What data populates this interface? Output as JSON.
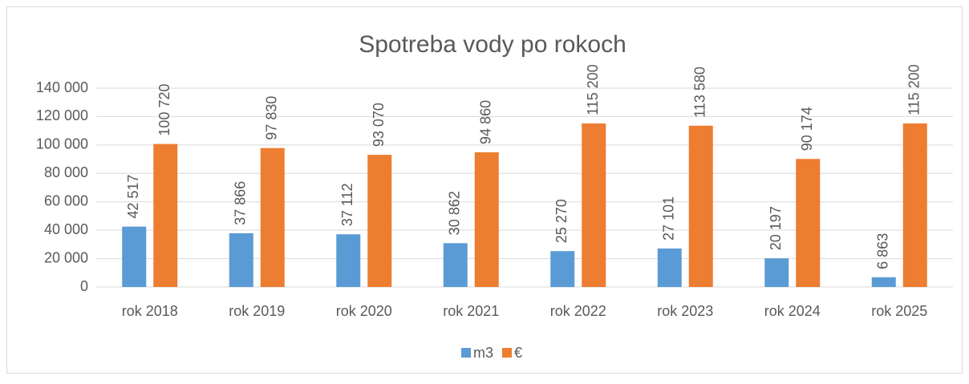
{
  "chart_data": {
    "type": "bar",
    "title": "Spotreba vody po rokoch",
    "categories": [
      "rok 2018",
      "rok 2019",
      "rok 2020",
      "rok 2021",
      "rok 2022",
      "rok 2023",
      "rok 2024",
      "rok 2025"
    ],
    "series": [
      {
        "name": "m3",
        "color": "#5b9bd5",
        "values": [
          42517,
          37866,
          37112,
          30862,
          25270,
          27101,
          20197,
          6863
        ],
        "value_labels": [
          "42 517",
          "37 866",
          "37 112",
          "30 862",
          "25 270",
          "27 101",
          "20 197",
          "6 863"
        ]
      },
      {
        "name": "€",
        "color": "#ed7d31",
        "values": [
          100720,
          97830,
          93070,
          94860,
          115200,
          113580,
          90174,
          115200
        ],
        "value_labels": [
          "100 720",
          "97 830",
          "93 070",
          "94 860",
          "115 200",
          "113 580",
          "90 174",
          "115 200"
        ]
      }
    ],
    "ylim": [
      0,
      140000
    ],
    "yticks": [
      0,
      {
        "value": 20000,
        "label": "20 000"
      },
      {
        "value": 40000,
        "label": "40 000"
      },
      {
        "value": 60000,
        "label": "60 000"
      },
      {
        "value": 80000,
        "label": "80 000"
      },
      {
        "value": 100000,
        "label": "100 000"
      },
      {
        "value": 120000,
        "label": "120 000"
      },
      {
        "value": 140000,
        "label": "140 000"
      }
    ],
    "grid": true,
    "legend": "bottom"
  }
}
